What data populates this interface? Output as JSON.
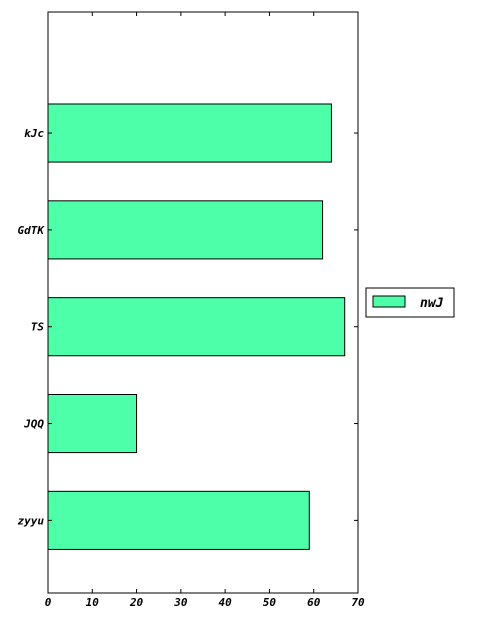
{
  "chart_data": {
    "type": "bar",
    "orientation": "horizontal",
    "categories": [
      "zyyu",
      "JQQ",
      "TS",
      "GdTK",
      "kJc"
    ],
    "series": [
      {
        "name": "nwJ",
        "values": [
          59,
          20,
          67,
          62,
          64
        ]
      }
    ],
    "xlim": [
      0,
      70
    ],
    "xticks": [
      0,
      10,
      20,
      30,
      40,
      50,
      60,
      70
    ],
    "ylim": [
      -0.75,
      5.25
    ],
    "title": "",
    "xlabel": "",
    "ylabel": "",
    "grid": false,
    "legend_position": "outside-right",
    "bar_color": "#4cffa8",
    "edge_color": "#000000"
  }
}
